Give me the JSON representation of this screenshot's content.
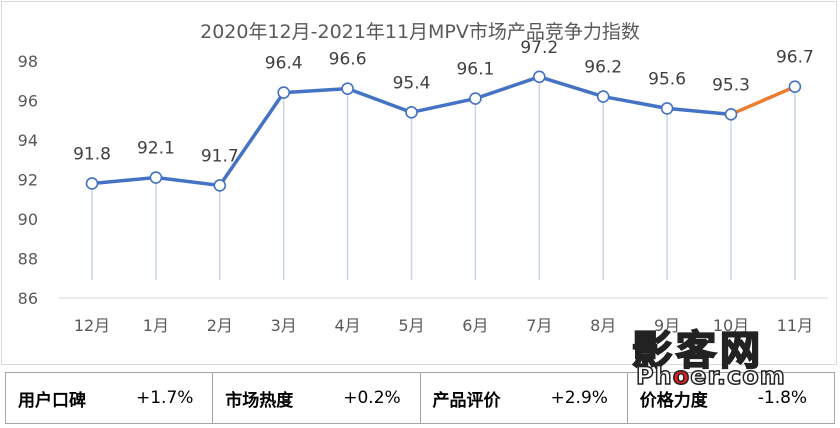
{
  "chart_data": {
    "type": "line",
    "title": "2020年12月-2021年11月MPV市场产品竞争力指数",
    "categories": [
      "12月",
      "1月",
      "2月",
      "3月",
      "4月",
      "5月",
      "6月",
      "7月",
      "8月",
      "9月",
      "10月",
      "11月"
    ],
    "series": [
      {
        "values": [
          91.8,
          92.1,
          91.7,
          96.4,
          96.6,
          95.4,
          96.1,
          97.2,
          96.2,
          95.6,
          95.3,
          96.7
        ]
      }
    ],
    "data_labels": [
      "91.8",
      "92.1",
      "91.7",
      "96.4",
      "96.6",
      "95.4",
      "96.1",
      "97.2",
      "96.2",
      "95.6",
      "95.3",
      "96.7"
    ],
    "ylim": [
      86,
      98
    ],
    "yticks": [
      "86",
      "88",
      "90",
      "92",
      "94",
      "96",
      "98"
    ],
    "grid": false,
    "colors": {
      "line": "#4472c4",
      "last_segment": "#ed7d31",
      "drop_line": "#c9d6e8"
    }
  },
  "metrics": [
    {
      "label": "用户口碑",
      "value": "+1.7%"
    },
    {
      "label": "市场热度",
      "value": "+0.2%"
    },
    {
      "label": "产品评价",
      "value": "+2.9%"
    },
    {
      "label": "价格力度",
      "value": "-1.8%"
    }
  ],
  "watermark": {
    "cn": "影客网",
    "en_pre": "Ph",
    "en_o": "o",
    "en_post": "er.com"
  }
}
